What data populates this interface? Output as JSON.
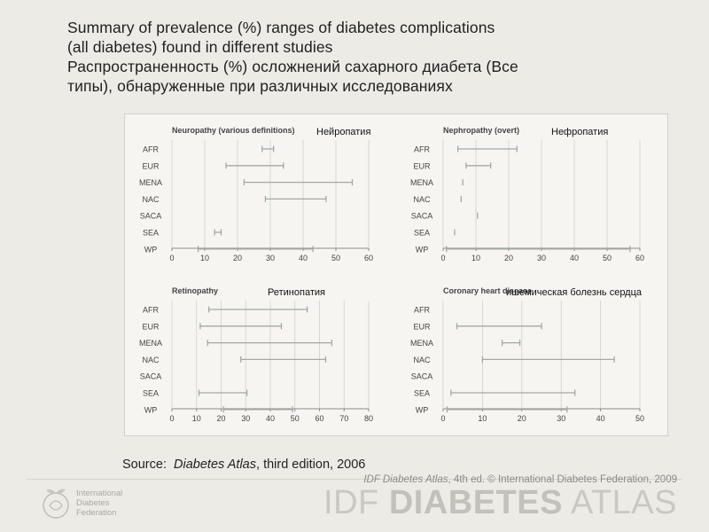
{
  "title": {
    "en_line1": "Summary of prevalence (%) ranges of diabetes complications",
    "en_line2": "(all diabetes) found in different studies",
    "ru_line1": "Распространенность (%) осложнений сахарного диабета (Все",
    "ru_line2": "типы), обнаруженные при различных исследованиях"
  },
  "colors": {
    "range_line": "#a2a8ae",
    "axis": "#8b8b87",
    "grid": "#cfd0cc",
    "panel_title": "#444444",
    "background": "#ecebe6"
  },
  "chart_data": [
    {
      "type": "range",
      "title": "Neuropathy (various definitions)",
      "annotation_ru": "Нейропатия",
      "categories": [
        "AFR",
        "EUR",
        "MENA",
        "NAC",
        "SACA",
        "SEA",
        "WP"
      ],
      "ranges": [
        [
          27.5,
          31
        ],
        [
          16.5,
          34
        ],
        [
          22,
          55
        ],
        [
          28.5,
          47
        ],
        null,
        [
          13,
          15
        ],
        [
          8,
          43
        ]
      ],
      "xlim": [
        0,
        60
      ],
      "xticks": [
        0,
        10,
        20,
        30,
        40,
        50,
        60
      ],
      "grid": true
    },
    {
      "type": "range",
      "title": "Nephropathy (overt)",
      "annotation_ru": "Нефропатия",
      "categories": [
        "AFR",
        "EUR",
        "MENA",
        "NAC",
        "SACA",
        "SEA",
        "WP"
      ],
      "ranges": [
        [
          4.5,
          22.5
        ],
        [
          7,
          14.5
        ],
        [
          6,
          6
        ],
        [
          5.5,
          5.5
        ],
        [
          10.5,
          10.5
        ],
        [
          3.5,
          3.5
        ],
        [
          1,
          57
        ]
      ],
      "xlim": [
        0,
        60
      ],
      "xticks": [
        0,
        10,
        20,
        30,
        40,
        50,
        60
      ],
      "grid": true
    },
    {
      "type": "range",
      "title": "Retinopathy",
      "annotation_ru": "Ретинопатия",
      "categories": [
        "AFR",
        "EUR",
        "MENA",
        "NAC",
        "SACA",
        "SEA",
        "WP"
      ],
      "ranges": [
        [
          15,
          55
        ],
        [
          11.5,
          44.5
        ],
        [
          14.5,
          65
        ],
        [
          28,
          62.5
        ],
        null,
        [
          11,
          30.5
        ],
        [
          21,
          49
        ]
      ],
      "xlim": [
        0,
        80
      ],
      "xticks": [
        0,
        10,
        20,
        30,
        40,
        50,
        60,
        70,
        80
      ],
      "grid": true
    },
    {
      "type": "range",
      "title": "Coronary heart disease",
      "annotation_ru": "ишемическая болезнь сердца",
      "categories": [
        "AFR",
        "EUR",
        "MENA",
        "NAC",
        "SACA",
        "SEA",
        "WP"
      ],
      "ranges": [
        null,
        [
          3.5,
          25
        ],
        [
          15,
          19.5
        ],
        [
          10,
          43.5
        ],
        null,
        [
          2,
          33.5
        ],
        [
          1,
          31.5
        ]
      ],
      "xlim": [
        0,
        50
      ],
      "xticks": [
        0,
        10,
        20,
        30,
        40,
        50
      ],
      "grid": true
    }
  ],
  "source": {
    "label": "Source:",
    "title": "Diabetes Atlas",
    "edition": ", third edition, 2006"
  },
  "footer": {
    "publication": "IDF Diabetes Atlas",
    "publication_rest": ", 4th ed. © International Diabetes Federation, 2009",
    "atlas_word1": "IDF",
    "atlas_word2": "DIABETES",
    "atlas_word3": "ATLAS",
    "org_line1": "International",
    "org_line2": "Diabetes",
    "org_line3": "Federation"
  }
}
